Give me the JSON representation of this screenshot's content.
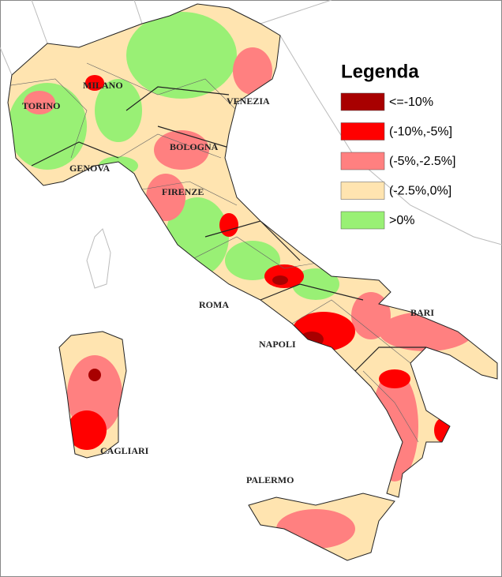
{
  "legend": {
    "title": "Legenda",
    "items": [
      {
        "label": "<=-10%",
        "color": "#a80000"
      },
      {
        "label": "(-10%,-5%]",
        "color": "#ff0000"
      },
      {
        "label": "(-5%,-2.5%]",
        "color": "#ff8080"
      },
      {
        "label": "(-2.5%,0%]",
        "color": "#ffe4b0"
      },
      {
        "label": ">0%",
        "color": "#99f075"
      }
    ]
  },
  "cities": [
    "MILANO",
    "TORINO",
    "VENEZIA",
    "BOLOGNA",
    "GENOVA",
    "FIRENZE",
    "ROMA",
    "NAPOLI",
    "BARI",
    "CAGLIARI",
    "PALERMO"
  ]
}
